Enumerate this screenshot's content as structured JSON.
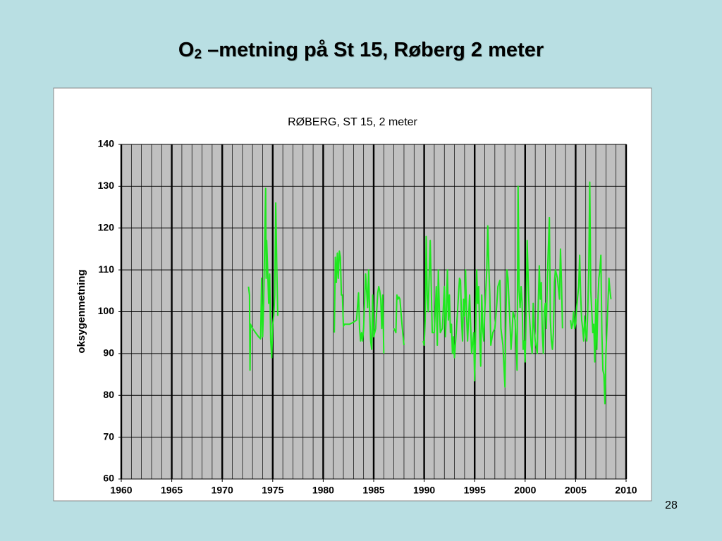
{
  "slide": {
    "title": {
      "main": "O",
      "sub": "2",
      "rest": " –metning på St 15, Røberg 2 meter"
    },
    "page_number": "28"
  },
  "chart_data": {
    "type": "line",
    "title": "RØBERG, ST 15, 2 meter",
    "y_label": "oksygenmetning",
    "color": "#1ee81e",
    "grid": true,
    "xlim": [
      1960,
      2010
    ],
    "xticks": [
      1960,
      1965,
      1970,
      1975,
      1980,
      1985,
      1990,
      1995,
      2000,
      2005,
      2010
    ],
    "ylim": [
      60,
      140
    ],
    "yticks": [
      60,
      70,
      80,
      90,
      100,
      110,
      120,
      130,
      140
    ],
    "x": [
      1972.6,
      1972.7,
      1972.75,
      1972.8,
      1973.0,
      1973.3,
      1973.6,
      1973.8,
      1973.9,
      1974.0,
      1974.1,
      1974.3,
      1974.35,
      1974.4,
      1974.5,
      1974.6,
      1974.7,
      1974.8,
      1974.9,
      1975.0,
      1975.1,
      1975.2,
      1975.3,
      1975.4,
      1975.5,
      1978,
      1981.1,
      1981.2,
      1981.3,
      1981.4,
      1981.5,
      1981.6,
      1981.7,
      1981.8,
      1981.9,
      1982.0,
      1982.1,
      1982.6,
      1983.0,
      1983.3,
      1983.5,
      1983.6,
      1983.7,
      1983.8,
      1983.9,
      1984.0,
      1984.2,
      1984.4,
      1984.5,
      1984.6,
      1984.7,
      1984.8,
      1984.9,
      1985.0,
      1985.2,
      1985.4,
      1985.5,
      1985.6,
      1985.7,
      1985.8,
      1985.9,
      1986.0,
      1986.5,
      1987.0,
      1987.2,
      1987.3,
      1987.4,
      1987.5,
      1987.6,
      1987.8,
      1988.0,
      1989,
      1989.9,
      1990.0,
      1990.1,
      1990.2,
      1990.3,
      1990.4,
      1990.5,
      1990.6,
      1990.7,
      1990.8,
      1991.0,
      1991.2,
      1991.3,
      1991.4,
      1991.5,
      1991.6,
      1991.8,
      1992.0,
      1992.1,
      1992.2,
      1992.3,
      1992.4,
      1992.5,
      1992.6,
      1992.7,
      1992.8,
      1992.9,
      1993.0,
      1993.2,
      1993.5,
      1993.6,
      1993.7,
      1993.8,
      1993.9,
      1994.0,
      1994.1,
      1994.2,
      1994.3,
      1994.5,
      1994.7,
      1994.9,
      1995.0,
      1995.1,
      1995.2,
      1995.3,
      1995.4,
      1995.5,
      1995.6,
      1995.7,
      1995.8,
      1995.9,
      1996.0,
      1996.2,
      1996.3,
      1996.4,
      1996.5,
      1996.6,
      1996.8,
      1997.0,
      1997.2,
      1997.3,
      1997.5,
      1997.6,
      1997.8,
      1998.0,
      1998.1,
      1998.2,
      1998.3,
      1998.5,
      1998.6,
      1998.7,
      1998.8,
      1999.0,
      1999.1,
      1999.2,
      1999.3,
      1999.4,
      1999.5,
      1999.6,
      1999.7,
      1999.8,
      1999.9,
      2000.0,
      2000.1,
      2000.2,
      2000.3,
      2000.4,
      2000.6,
      2000.7,
      2000.8,
      2000.9,
      2001.0,
      2001.2,
      2001.3,
      2001.4,
      2001.5,
      2001.6,
      2001.7,
      2001.8,
      2001.9,
      2002.0,
      2002.1,
      2002.2,
      2002.4,
      2002.5,
      2002.6,
      2002.7,
      2002.8,
      2002.9,
      2003.0,
      2003.2,
      2003.4,
      2003.5,
      2003.6,
      2003.7,
      2004.1,
      2004.5,
      2004.6,
      2004.7,
      2004.8,
      2004.9,
      2005.0,
      2005.1,
      2005.3,
      2005.4,
      2005.5,
      2005.6,
      2005.7,
      2005.8,
      2005.9,
      2006.0,
      2006.1,
      2006.2,
      2006.3,
      2006.4,
      2006.5,
      2006.6,
      2006.7,
      2006.8,
      2006.9,
      2007.0,
      2007.1,
      2007.2,
      2007.3,
      2007.4,
      2007.5,
      2007.6,
      2007.7,
      2007.8,
      2007.9,
      2008.0,
      2008.1,
      2008.2,
      2008.3,
      2008.4,
      2008.5
    ],
    "values": [
      106,
      104,
      86,
      97,
      96,
      95,
      94,
      93.5,
      108,
      94,
      102,
      129.5,
      108,
      117,
      110,
      102,
      109,
      93,
      89,
      97,
      99,
      104,
      126,
      111,
      99,
      null,
      95,
      113,
      107,
      114,
      108,
      114.5,
      113,
      104,
      104,
      96.5,
      97,
      97,
      97.5,
      98,
      104.5,
      96,
      93,
      95,
      93,
      96,
      109,
      101,
      110,
      100,
      93,
      91,
      104,
      94,
      96,
      104.5,
      106,
      105,
      103,
      96,
      104,
      90,
      null,
      96,
      95,
      104,
      103,
      103.5,
      103,
      97,
      92,
      null,
      93,
      92,
      98,
      118,
      104,
      100,
      109,
      117,
      106,
      95,
      95,
      106,
      92,
      110,
      101,
      95,
      96,
      106,
      94,
      100,
      110,
      98,
      104,
      95,
      97,
      90,
      94,
      89,
      96,
      108,
      107.5,
      98,
      93,
      103,
      99,
      110,
      99,
      93,
      104,
      90,
      95,
      83.5,
      96,
      110,
      102,
      106,
      95,
      87,
      104,
      96,
      93,
      100,
      110,
      120.5,
      111,
      104,
      92,
      95,
      96,
      102,
      106,
      107.5,
      96,
      92,
      82,
      100,
      110,
      108,
      97,
      91,
      95,
      100,
      98,
      93,
      86,
      130,
      105,
      101,
      106,
      102,
      91,
      93,
      88,
      100,
      117,
      108,
      100,
      92,
      90,
      102,
      96,
      93,
      90,
      102,
      111,
      103,
      107,
      95,
      90,
      100,
      102,
      96,
      108,
      122.5,
      98,
      93,
      91,
      95,
      107,
      110,
      108,
      103,
      115,
      107,
      96,
      null,
      98,
      96,
      97,
      100,
      96,
      97,
      101,
      106,
      113.5,
      104,
      98,
      96,
      93,
      99,
      95,
      93,
      100,
      110,
      131,
      105,
      100,
      95,
      97,
      88,
      103,
      91,
      102,
      108,
      110,
      113.5,
      95,
      86,
      85,
      78,
      90,
      96,
      102,
      108,
      105,
      103
    ]
  }
}
